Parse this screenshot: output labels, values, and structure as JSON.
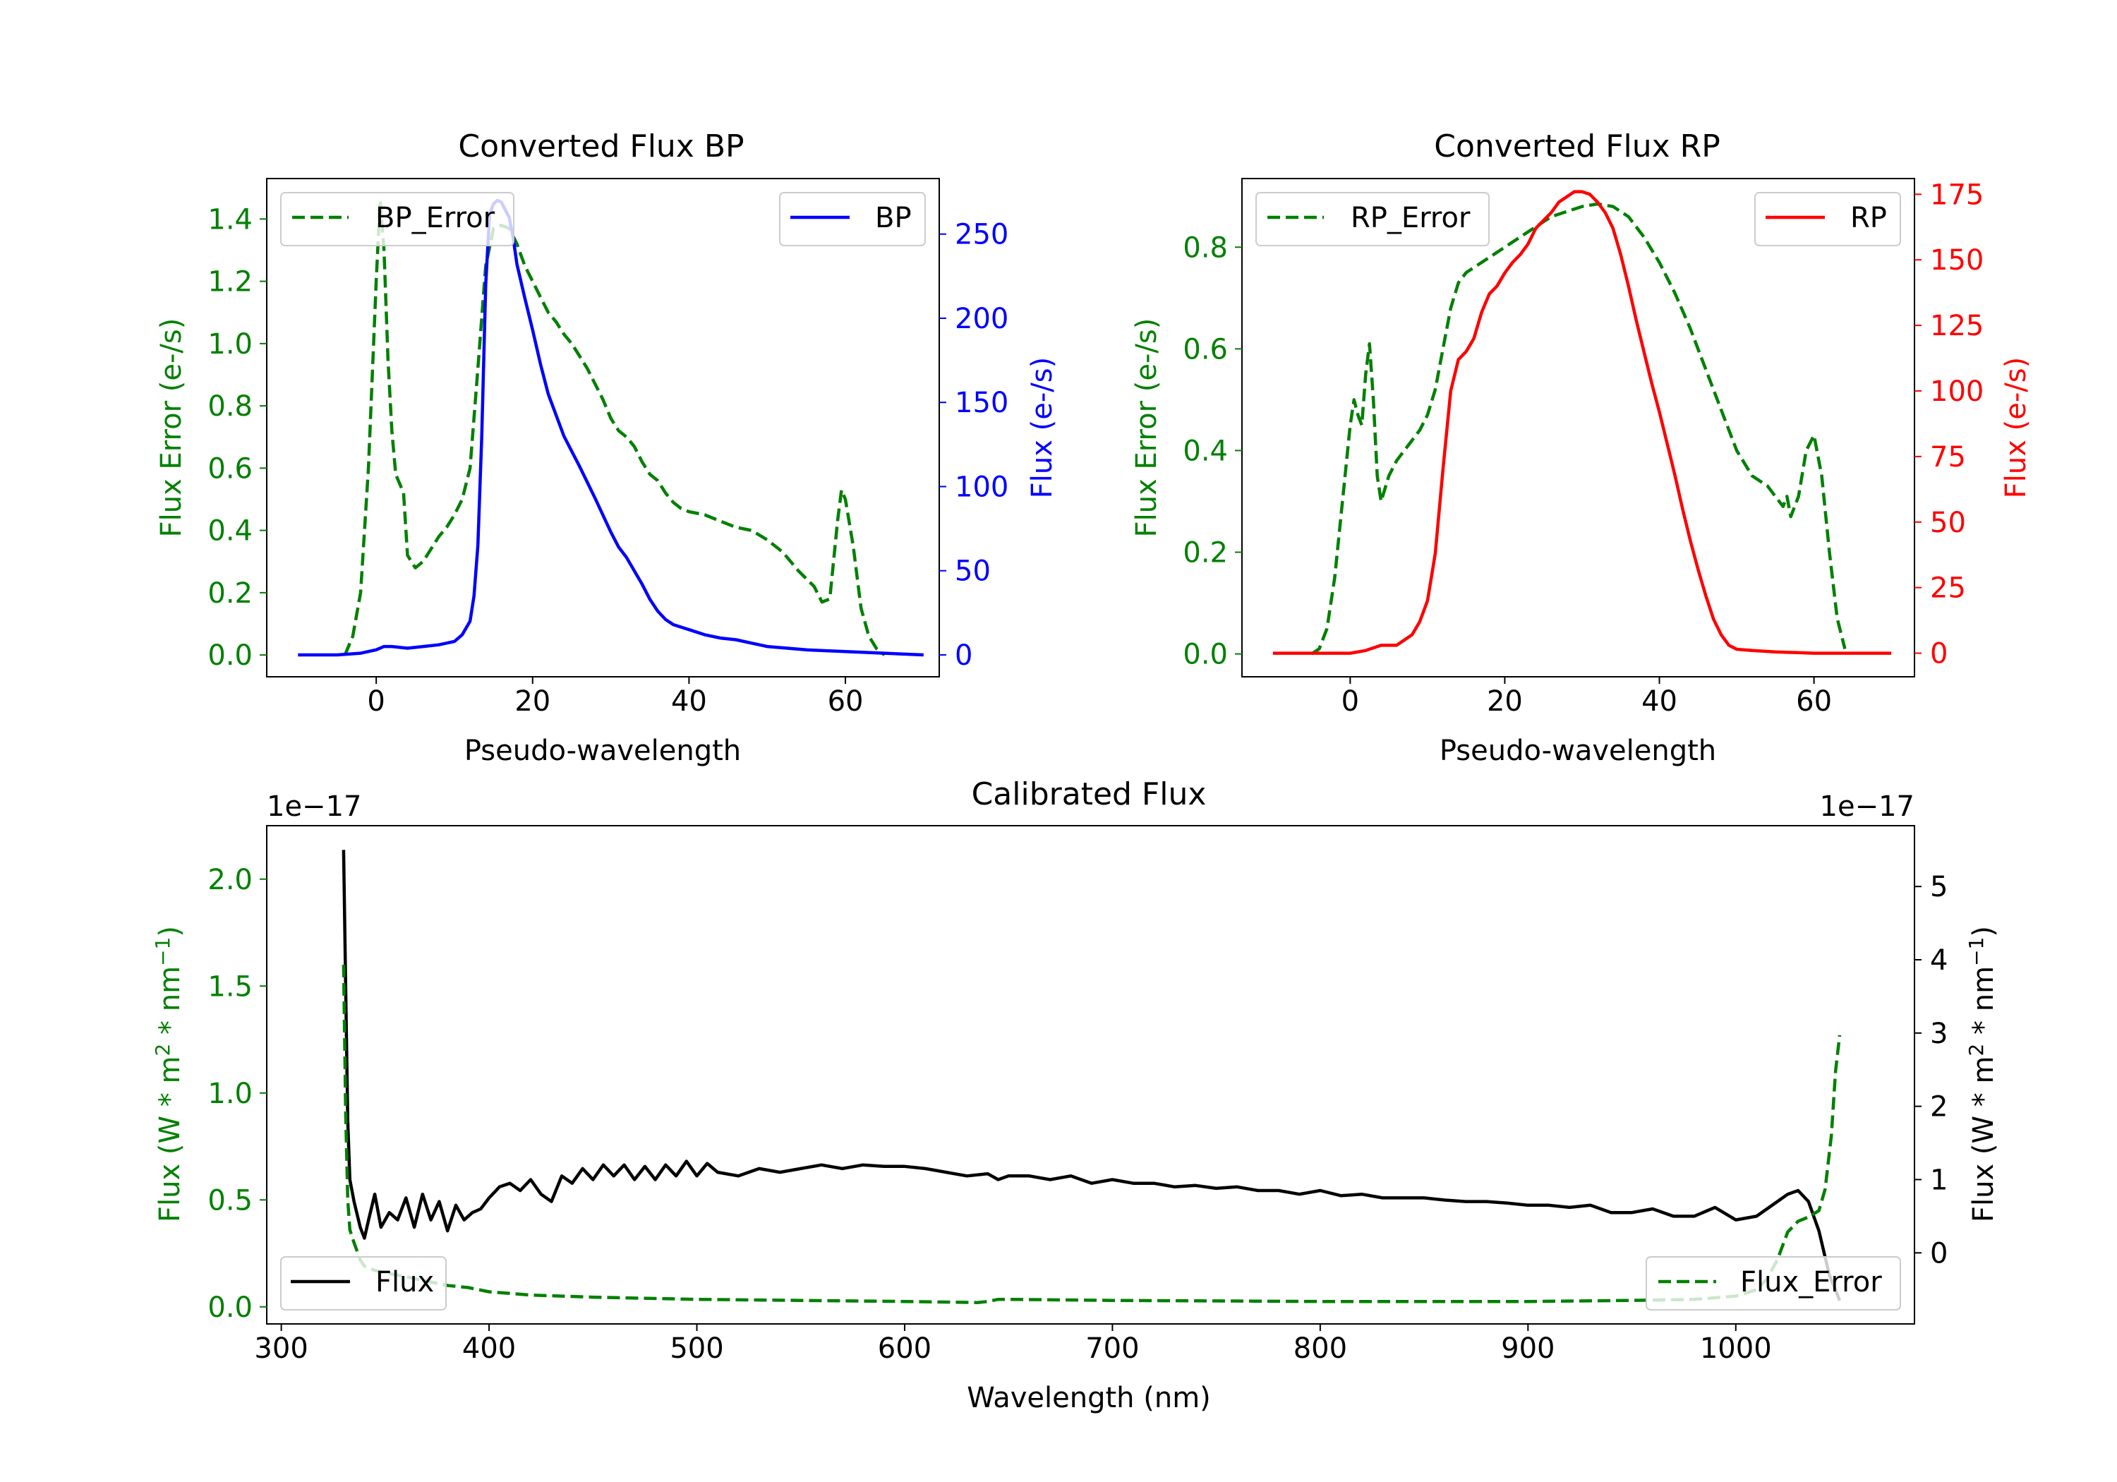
{
  "colors": {
    "error": "#008000",
    "bp": "#0000ff",
    "rp": "#ff0000",
    "flux": "#000000",
    "frame": "#000000"
  },
  "chart_data": [
    {
      "type": "line",
      "id": "bp",
      "title": "Converted Flux BP",
      "xlabel": "Pseudo-wavelength",
      "ylabel_left": "Flux Error (e-/s)",
      "ylabel_right": "Flux (e-/s)",
      "xlim": [
        -14,
        72
      ],
      "ylim_left": [
        -0.07,
        1.53
      ],
      "ylim_right": [
        -13,
        283
      ],
      "xticks": [
        0,
        20,
        40,
        60
      ],
      "xtick_labels": [
        "0",
        "20",
        "40",
        "60"
      ],
      "yticks_left": [
        0,
        0.2,
        0.4,
        0.6,
        0.8,
        1.0,
        1.2,
        1.4
      ],
      "ytick_labels_left": [
        "0.0",
        "0.2",
        "0.4",
        "0.6",
        "0.8",
        "1.0",
        "1.2",
        "1.4"
      ],
      "yticks_right": [
        0,
        50,
        100,
        150,
        200,
        250
      ],
      "ytick_labels_right": [
        "0",
        "50",
        "100",
        "150",
        "200",
        "250"
      ],
      "legend_left": {
        "label": "BP_Error",
        "position": "upper left"
      },
      "legend_right": {
        "label": "BP",
        "position": "upper right"
      },
      "series": [
        {
          "name": "BP_Error",
          "axis": "left",
          "style": "dashed",
          "color": "#008000",
          "x": [
            -4,
            -3,
            -2,
            -1,
            0,
            0.5,
            1,
            1.5,
            2,
            2.5,
            3,
            3.5,
            4,
            5,
            6,
            7,
            8,
            9,
            10,
            11,
            12,
            13,
            14,
            15,
            16,
            17,
            18,
            19,
            20,
            21,
            22,
            23,
            24,
            25,
            26,
            27,
            28,
            29,
            30,
            31,
            32,
            33,
            34,
            35,
            36,
            37,
            38,
            39,
            40,
            42,
            44,
            46,
            48,
            50,
            52,
            54,
            56,
            57,
            58,
            59,
            59.5,
            60,
            61,
            62,
            63,
            64,
            65
          ],
          "values": [
            0.0,
            0.06,
            0.2,
            0.6,
            1.2,
            1.46,
            1.3,
            0.95,
            0.72,
            0.58,
            0.55,
            0.52,
            0.32,
            0.28,
            0.3,
            0.34,
            0.38,
            0.41,
            0.45,
            0.5,
            0.6,
            0.92,
            1.25,
            1.37,
            1.38,
            1.37,
            1.32,
            1.25,
            1.2,
            1.15,
            1.1,
            1.07,
            1.03,
            1.0,
            0.96,
            0.92,
            0.87,
            0.82,
            0.76,
            0.72,
            0.7,
            0.67,
            0.62,
            0.58,
            0.56,
            0.52,
            0.49,
            0.47,
            0.46,
            0.45,
            0.43,
            0.41,
            0.4,
            0.37,
            0.33,
            0.27,
            0.22,
            0.17,
            0.18,
            0.43,
            0.53,
            0.5,
            0.35,
            0.15,
            0.06,
            0.02,
            0.0
          ]
        },
        {
          "name": "BP",
          "axis": "right",
          "style": "solid",
          "color": "#0000ff",
          "x": [
            -10,
            -5,
            -2,
            0,
            1,
            2,
            4,
            6,
            8,
            10,
            11,
            12,
            12.5,
            13,
            13.5,
            14,
            14.5,
            15,
            15.5,
            16,
            17,
            17.5,
            18,
            19,
            20,
            21,
            22,
            24,
            26,
            28,
            30,
            31,
            32,
            33,
            34,
            35,
            36,
            37,
            38,
            40,
            42,
            44,
            46,
            48,
            50,
            55,
            60,
            65,
            70
          ],
          "values": [
            0,
            0,
            1,
            3,
            5,
            5,
            4,
            5,
            6,
            8,
            12,
            20,
            35,
            65,
            130,
            220,
            262,
            268,
            270,
            269,
            260,
            248,
            232,
            212,
            193,
            173,
            155,
            130,
            112,
            93,
            73,
            64,
            58,
            50,
            42,
            33,
            26,
            21,
            18,
            15,
            12,
            10,
            9,
            7,
            5,
            3,
            2,
            1,
            0
          ]
        }
      ]
    },
    {
      "type": "line",
      "id": "rp",
      "title": "Converted Flux RP",
      "xlabel": "Pseudo-wavelength",
      "ylabel_left": "Flux Error (e-/s)",
      "ylabel_right": "Flux (e-/s)",
      "xlim": [
        -14,
        73
      ],
      "ylim_left": [
        -0.045,
        0.935
      ],
      "ylim_right": [
        -9,
        181
      ],
      "xticks": [
        0,
        20,
        40,
        60
      ],
      "xtick_labels": [
        "0",
        "20",
        "40",
        "60"
      ],
      "yticks_left": [
        0,
        0.2,
        0.4,
        0.6,
        0.8
      ],
      "ytick_labels_left": [
        "0.0",
        "0.2",
        "0.4",
        "0.6",
        "0.8"
      ],
      "yticks_right": [
        0,
        25,
        50,
        75,
        100,
        125,
        150,
        175
      ],
      "ytick_labels_right": [
        "0",
        "25",
        "50",
        "75",
        "100",
        "125",
        "150",
        "175"
      ],
      "legend_left": {
        "label": "RP_Error",
        "position": "upper left"
      },
      "legend_right": {
        "label": "RP",
        "position": "upper right"
      },
      "series": [
        {
          "name": "RP_Error",
          "axis": "left",
          "style": "dashed",
          "color": "#008000",
          "x": [
            -5,
            -4,
            -3,
            -2,
            -1,
            0,
            0.5,
            1,
            1.5,
            2,
            2.5,
            3,
            3.5,
            4,
            5,
            6,
            7,
            8,
            9,
            10,
            11,
            12,
            13,
            14,
            15,
            16,
            17,
            18,
            19,
            20,
            22,
            24,
            26,
            28,
            30,
            32,
            34,
            36,
            38,
            40,
            42,
            44,
            46,
            48,
            50,
            52,
            54,
            55,
            56,
            56.5,
            57,
            58,
            59,
            60,
            61,
            62,
            63,
            64
          ],
          "values": [
            0.0,
            0.01,
            0.05,
            0.15,
            0.3,
            0.45,
            0.5,
            0.47,
            0.45,
            0.55,
            0.61,
            0.5,
            0.35,
            0.3,
            0.35,
            0.38,
            0.4,
            0.42,
            0.44,
            0.47,
            0.52,
            0.6,
            0.68,
            0.73,
            0.75,
            0.76,
            0.77,
            0.78,
            0.79,
            0.8,
            0.82,
            0.84,
            0.86,
            0.87,
            0.88,
            0.885,
            0.88,
            0.86,
            0.82,
            0.77,
            0.71,
            0.64,
            0.56,
            0.48,
            0.4,
            0.35,
            0.33,
            0.31,
            0.29,
            0.31,
            0.27,
            0.31,
            0.4,
            0.43,
            0.35,
            0.2,
            0.07,
            0.01
          ]
        },
        {
          "name": "RP",
          "axis": "right",
          "style": "solid",
          "color": "#ff0000",
          "x": [
            -10,
            -5,
            0,
            2,
            4,
            6,
            8,
            9,
            10,
            11,
            12,
            13,
            14,
            15,
            16,
            17,
            18,
            19,
            20,
            21,
            22,
            23,
            24,
            25,
            26,
            27,
            28,
            29,
            30,
            31,
            32,
            33,
            34,
            35,
            36,
            37,
            38,
            39,
            40,
            41,
            42,
            43,
            44,
            45,
            46,
            47,
            48,
            49,
            50,
            52,
            55,
            60,
            70
          ],
          "values": [
            0,
            0,
            0,
            1,
            3,
            3,
            7,
            12,
            20,
            38,
            70,
            100,
            112,
            115,
            120,
            130,
            137,
            140,
            145,
            149,
            152,
            156,
            162,
            165,
            168,
            172,
            174,
            176,
            176,
            175,
            172,
            168,
            162,
            152,
            140,
            127,
            115,
            103,
            92,
            80,
            68,
            55,
            43,
            32,
            22,
            13,
            7,
            3,
            1.5,
            1,
            0.5,
            0,
            0
          ]
        }
      ]
    },
    {
      "type": "line",
      "id": "calibrated",
      "title": "Calibrated Flux",
      "xlabel": "Wavelength (nm)",
      "ylabel_left": "Flux (W * m",
      "ylabel_right": "Flux (W * m",
      "ylabel_sup": "2",
      "ylabel_mid": " * nm",
      "ylabel_sup2": "−1",
      "ylabel_end": ")",
      "offset_left": "1e−17",
      "offset_right": "1e−17",
      "xlim": [
        293,
        1086
      ],
      "ylim_left": [
        -0.08,
        2.25
      ],
      "ylim_right": [
        -0.97,
        5.83
      ],
      "xticks": [
        300,
        400,
        500,
        600,
        700,
        800,
        900,
        1000
      ],
      "xtick_labels": [
        "300",
        "400",
        "500",
        "600",
        "700",
        "800",
        "900",
        "1000"
      ],
      "yticks_left": [
        0,
        0.5,
        1.0,
        1.5,
        2.0
      ],
      "ytick_labels_left": [
        "0.0",
        "0.5",
        "1.0",
        "1.5",
        "2.0"
      ],
      "yticks_right": [
        0,
        1,
        2,
        3,
        4,
        5
      ],
      "ytick_labels_right": [
        "0",
        "1",
        "2",
        "3",
        "4",
        "5"
      ],
      "legend_left": {
        "label": "Flux",
        "position": "lower left"
      },
      "legend_right": {
        "label": "Flux_Error",
        "position": "lower right"
      },
      "series": [
        {
          "name": "Flux",
          "axis": "right",
          "style": "solid",
          "color": "#000000",
          "x": [
            330,
            331,
            332,
            333,
            335,
            338,
            340,
            342,
            345,
            348,
            352,
            356,
            360,
            364,
            368,
            372,
            376,
            380,
            384,
            388,
            392,
            396,
            400,
            405,
            410,
            415,
            420,
            425,
            430,
            435,
            440,
            445,
            450,
            455,
            460,
            465,
            470,
            475,
            480,
            485,
            490,
            495,
            500,
            505,
            510,
            520,
            530,
            540,
            550,
            560,
            570,
            580,
            590,
            600,
            610,
            620,
            630,
            640,
            645,
            650,
            660,
            670,
            680,
            690,
            700,
            710,
            720,
            730,
            740,
            750,
            760,
            770,
            780,
            790,
            800,
            810,
            820,
            830,
            840,
            850,
            860,
            870,
            880,
            890,
            900,
            910,
            920,
            930,
            940,
            950,
            960,
            970,
            980,
            990,
            1000,
            1010,
            1020,
            1025,
            1030,
            1035,
            1040,
            1045,
            1050
          ],
          "values": [
            5.5,
            3.6,
            1.8,
            1.0,
            0.7,
            0.35,
            0.2,
            0.45,
            0.8,
            0.35,
            0.55,
            0.45,
            0.75,
            0.35,
            0.8,
            0.45,
            0.7,
            0.3,
            0.65,
            0.45,
            0.55,
            0.6,
            0.75,
            0.9,
            0.95,
            0.85,
            1.0,
            0.8,
            0.7,
            1.05,
            0.95,
            1.15,
            1.0,
            1.2,
            1.05,
            1.2,
            1.0,
            1.18,
            1.0,
            1.2,
            1.05,
            1.25,
            1.05,
            1.22,
            1.1,
            1.05,
            1.15,
            1.1,
            1.15,
            1.2,
            1.15,
            1.2,
            1.18,
            1.18,
            1.15,
            1.1,
            1.05,
            1.08,
            1.0,
            1.05,
            1.05,
            1.0,
            1.05,
            0.95,
            1.0,
            0.95,
            0.95,
            0.9,
            0.92,
            0.88,
            0.9,
            0.85,
            0.85,
            0.8,
            0.85,
            0.78,
            0.8,
            0.75,
            0.75,
            0.75,
            0.72,
            0.7,
            0.7,
            0.68,
            0.65,
            0.65,
            0.62,
            0.65,
            0.55,
            0.55,
            0.6,
            0.5,
            0.5,
            0.62,
            0.45,
            0.5,
            0.7,
            0.8,
            0.85,
            0.7,
            0.3,
            -0.3,
            -0.65
          ]
        },
        {
          "name": "Flux_Error",
          "axis": "left",
          "style": "dashed",
          "color": "#008000",
          "x": [
            330,
            331,
            332,
            333,
            335,
            338,
            340,
            345,
            350,
            360,
            370,
            380,
            390,
            400,
            420,
            450,
            500,
            550,
            600,
            635,
            640,
            645,
            650,
            700,
            800,
            900,
            950,
            980,
            1000,
            1010,
            1015,
            1020,
            1025,
            1030,
            1035,
            1040,
            1043,
            1046,
            1048,
            1050
          ],
          "values": [
            1.6,
            0.9,
            0.5,
            0.36,
            0.3,
            0.22,
            0.19,
            0.17,
            0.16,
            0.14,
            0.12,
            0.1,
            0.09,
            0.07,
            0.055,
            0.045,
            0.035,
            0.03,
            0.025,
            0.02,
            0.025,
            0.035,
            0.035,
            0.03,
            0.025,
            0.025,
            0.03,
            0.035,
            0.05,
            0.08,
            0.13,
            0.22,
            0.35,
            0.4,
            0.42,
            0.45,
            0.55,
            0.8,
            1.1,
            1.27
          ]
        }
      ]
    }
  ]
}
